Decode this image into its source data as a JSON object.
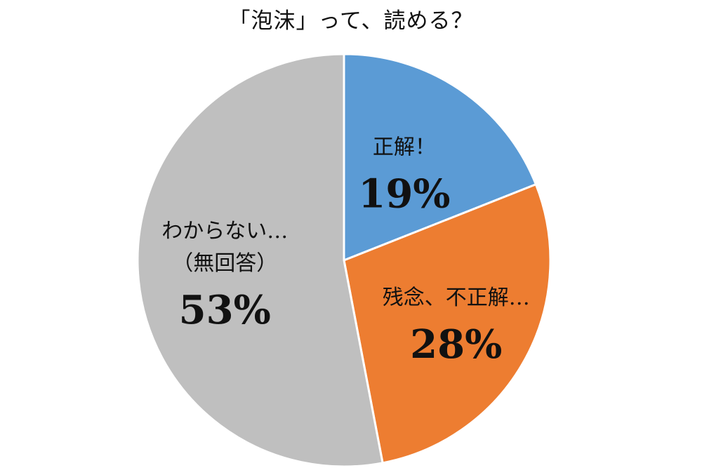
{
  "chart_data": {
    "type": "pie",
    "title": "「泡沫」って、読める？",
    "start_angle_deg": 0,
    "direction": "clockwise",
    "slices": [
      {
        "label_lines": [
          "正解！"
        ],
        "value": 19,
        "value_label": "19%",
        "color": "#5b9bd5"
      },
      {
        "label_lines": [
          "残念、不正解…"
        ],
        "value": 28,
        "value_label": "28%",
        "color": "#ed7d31"
      },
      {
        "label_lines": [
          "わからない…",
          "（無回答）"
        ],
        "value": 53,
        "value_label": "53%",
        "color": "#bfbfbf"
      }
    ],
    "slice_border_color": "#ffffff",
    "legend": "none"
  }
}
